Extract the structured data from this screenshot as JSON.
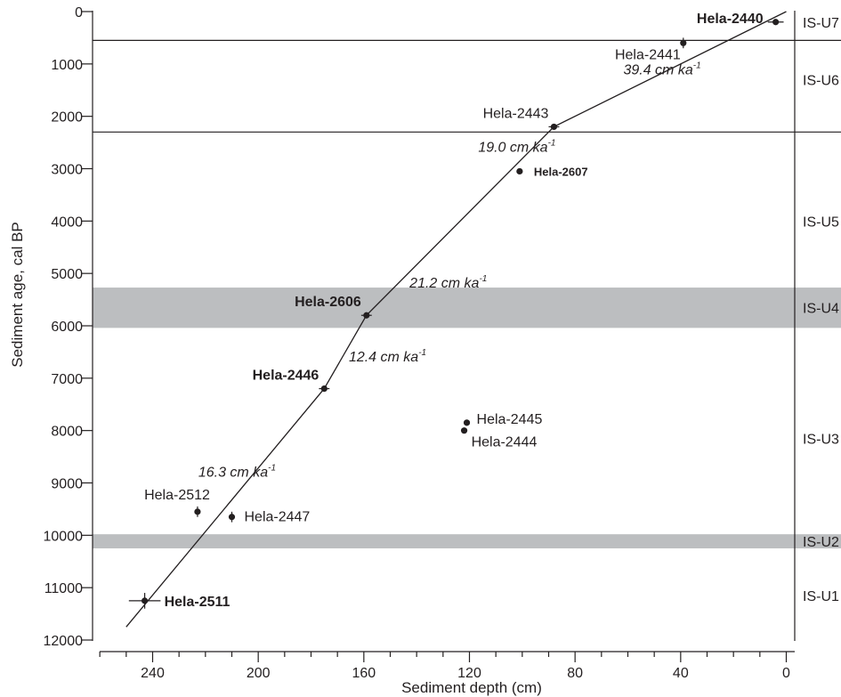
{
  "chart_data": {
    "type": "scatter",
    "xlabel": "Sediment depth (cm)",
    "ylabel": "Sediment age, cal BP",
    "xlim": [
      264,
      0
    ],
    "ylim": [
      0,
      12000
    ],
    "x_ticks": [
      240,
      200,
      160,
      120,
      80,
      40,
      0
    ],
    "y_ticks": [
      0,
      1000,
      2000,
      3000,
      4000,
      5000,
      6000,
      7000,
      8000,
      9000,
      10000,
      11000,
      12000
    ],
    "points": [
      {
        "name": "Hela-2440",
        "depth": 4,
        "age": 200,
        "bold": true,
        "label_pos": "left",
        "xerr": 3,
        "yerr": 0
      },
      {
        "name": "Hela-2441",
        "depth": 39,
        "age": 600,
        "bold": false,
        "label_pos": "below-left",
        "xerr": 0,
        "yerr": 100
      },
      {
        "name": "Hela-2443",
        "depth": 88,
        "age": 2200,
        "bold": false,
        "label_pos": "above-left",
        "xerr": 2,
        "yerr": 0
      },
      {
        "name": "Hela-2607",
        "depth": 101,
        "age": 3050,
        "bold": true,
        "small": true,
        "label_pos": "right",
        "xerr": 0,
        "yerr": 0
      },
      {
        "name": "Hela-2606",
        "depth": 159,
        "age": 5800,
        "bold": true,
        "label_pos": "above-left",
        "xerr": 2,
        "yerr": 0
      },
      {
        "name": "Hela-2446",
        "depth": 175,
        "age": 7200,
        "bold": true,
        "label_pos": "above-left",
        "xerr": 2,
        "yerr": 0
      },
      {
        "name": "Hela-2445",
        "depth": 121,
        "age": 7850,
        "bold": false,
        "label_pos": "right",
        "xerr": 0,
        "yerr": 0
      },
      {
        "name": "Hela-2444",
        "depth": 122,
        "age": 8000,
        "bold": false,
        "label_pos": "below-right",
        "xerr": 0,
        "yerr": 0
      },
      {
        "name": "Hela-2512",
        "depth": 223,
        "age": 9550,
        "bold": false,
        "label_pos": "above-left",
        "xerr": 0,
        "yerr": 100
      },
      {
        "name": "Hela-2447",
        "depth": 210,
        "age": 9650,
        "bold": false,
        "label_pos": "right",
        "xerr": 0,
        "yerr": 100
      },
      {
        "name": "Hela-2511",
        "depth": 243,
        "age": 11250,
        "bold": true,
        "label_pos": "right",
        "xerr": 6,
        "yerr": 150
      }
    ],
    "age_depth_model": [
      {
        "depth": 0,
        "age": 0
      },
      {
        "depth": 88,
        "age": 2200
      },
      {
        "depth": 159,
        "age": 5800
      },
      {
        "depth": 175,
        "age": 7200
      },
      {
        "depth": 250,
        "age": 11750
      }
    ],
    "rates": [
      {
        "text": "39.4 cm ka",
        "depth": 47,
        "age": 1200
      },
      {
        "text": "19.0 cm ka",
        "depth": 102,
        "age": 2680
      },
      {
        "text": "21.2 cm ka",
        "depth": 128,
        "age": 5270
      },
      {
        "text": "12.4 cm ka",
        "depth": 151,
        "age": 6680
      },
      {
        "text": "16.3 cm ka",
        "depth": 208,
        "age": 8880
      }
    ],
    "rate_unit_superscript": "-1",
    "unit_boundaries": [
      550,
      2300
    ],
    "shaded_bands": [
      {
        "from": 5270,
        "to": 6040
      },
      {
        "from": 9980,
        "to": 10250
      }
    ],
    "units": [
      {
        "label": "IS-U7",
        "age": 200
      },
      {
        "label": "IS-U6",
        "age": 1300
      },
      {
        "label": "IS-U5",
        "age": 4000
      },
      {
        "label": "IS-U4",
        "age": 5650
      },
      {
        "label": "IS-U3",
        "age": 8150
      },
      {
        "label": "IS-U2",
        "age": 10115
      },
      {
        "label": "IS-U1",
        "age": 11150
      }
    ]
  }
}
